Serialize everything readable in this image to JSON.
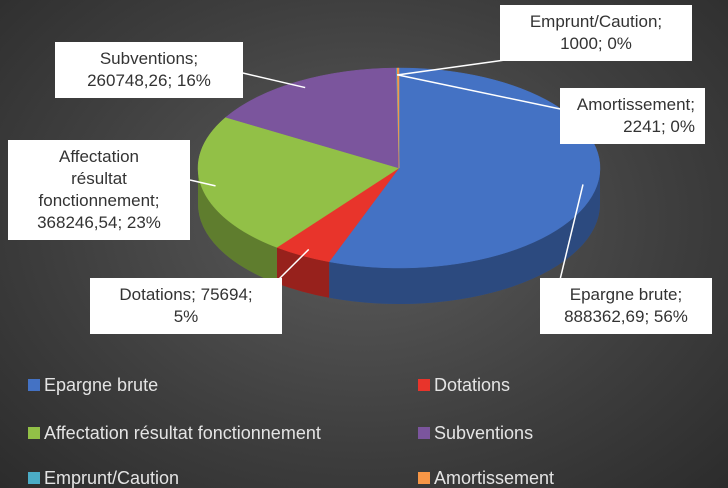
{
  "chart_data": {
    "type": "pie",
    "categories": [
      "Epargne brute",
      "Dotations",
      "Affectation résultat fonctionnement",
      "Subventions",
      "Emprunt/Caution",
      "Amortissement"
    ],
    "values": [
      888362.69,
      75694,
      368246.54,
      260748.26,
      1000,
      2241
    ],
    "value_labels": [
      "Epargne brute; 888362,69; 56%",
      "Dotations; 75694; 5%",
      "Affectation résultat fonctionnement; 368246,54; 23%",
      "Subventions; 260748,26; 16%",
      "Emprunt/Caution; 1000; 0%",
      "Amortissement; 2241; 0%"
    ],
    "colors": [
      "#4472c4",
      "#e8342b",
      "#92c047",
      "#7b559d",
      "#4bacc6",
      "#f79646"
    ]
  }
}
